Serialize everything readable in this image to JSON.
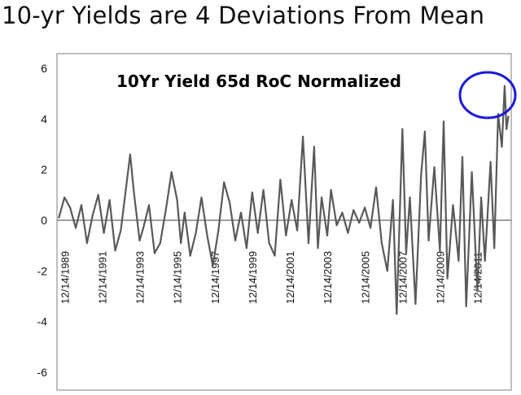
{
  "slide": {
    "title": "10-yr Yields are 4 Deviations From Mean"
  },
  "colors": {
    "series": "#595959",
    "zero_line": "#7f7f7f",
    "frame": "#7f7f7f",
    "annotation": "#1a1ad6",
    "background": "#ffffff"
  },
  "chart_data": {
    "type": "line",
    "title": "10Yr Yield 65d RoC Normalized",
    "xlabel": "",
    "ylabel": "",
    "ylim": [
      -6,
      6
    ],
    "yticks": [
      -6,
      -4,
      -2,
      0,
      2,
      4,
      6
    ],
    "grid": false,
    "x_tick_labels": [
      "12/14/1989",
      "12/14/1991",
      "12/14/1993",
      "12/14/1995",
      "12/14/1997",
      "12/14/1999",
      "12/14/2001",
      "12/14/2003",
      "12/14/2005",
      "12/14/2007",
      "12/14/2009",
      "12/14/2011"
    ],
    "x_tick_years": [
      1989.95,
      1991.95,
      1993.95,
      1995.95,
      1997.95,
      1999.95,
      2001.95,
      2003.95,
      2005.95,
      2007.95,
      2009.95,
      2011.95
    ],
    "xlim": [
      1989.5,
      2013.7
    ],
    "annotation": "circle around the latest peak",
    "series": [
      {
        "x": [
          1989.6,
          1989.9,
          1990.2,
          1990.5,
          1990.8,
          1991.1,
          1991.4,
          1991.7,
          1992.0,
          1992.3,
          1992.6,
          1992.9,
          1993.2,
          1993.4,
          1993.6,
          1993.9,
          1994.1,
          1994.4,
          1994.7,
          1995.0,
          1995.3,
          1995.6,
          1995.9,
          1996.1,
          1996.3,
          1996.6,
          1996.9,
          1997.2,
          1997.5,
          1997.8,
          1998.1,
          1998.4,
          1998.7,
          1999.0,
          1999.3,
          1999.6,
          1999.9,
          2000.2,
          2000.5,
          2000.8,
          2001.1,
          2001.4,
          2001.7,
          2002.0,
          2002.3,
          2002.6,
          2002.9,
          2003.2,
          2003.4,
          2003.6,
          2003.9,
          2004.1,
          2004.4,
          2004.7,
          2005.0,
          2005.3,
          2005.6,
          2005.9,
          2006.2,
          2006.5,
          2006.8,
          2007.1,
          2007.4,
          2007.6,
          2007.9,
          2008.1,
          2008.3,
          2008.6,
          2008.9,
          2009.1,
          2009.3,
          2009.6,
          2009.9,
          2010.1,
          2010.3,
          2010.6,
          2010.9,
          2011.1,
          2011.3,
          2011.6,
          2011.9,
          2012.1,
          2012.3,
          2012.6,
          2012.8,
          2013.0,
          2013.2,
          2013.35,
          2013.45,
          2013.55
        ],
        "y": [
          0.1,
          0.9,
          0.5,
          -0.3,
          0.6,
          -0.9,
          0.2,
          1.0,
          -0.5,
          0.8,
          -1.2,
          -0.4,
          1.4,
          2.6,
          1.1,
          -0.8,
          -0.3,
          0.6,
          -1.3,
          -0.9,
          0.4,
          1.9,
          0.8,
          -0.9,
          0.3,
          -1.4,
          -0.5,
          0.9,
          -0.6,
          -1.8,
          -0.4,
          1.5,
          0.7,
          -0.8,
          0.3,
          -1.1,
          1.1,
          -0.5,
          1.2,
          -0.9,
          -1.4,
          1.6,
          -0.6,
          0.8,
          -0.4,
          3.3,
          -0.9,
          2.9,
          -1.1,
          0.9,
          -0.6,
          1.2,
          -0.2,
          0.3,
          -0.5,
          0.4,
          -0.1,
          0.5,
          -0.3,
          1.3,
          -0.9,
          -2.0,
          0.8,
          -3.7,
          3.6,
          -1.3,
          0.9,
          -3.3,
          1.8,
          3.5,
          -0.8,
          2.1,
          -1.2,
          3.9,
          -2.3,
          0.6,
          -1.6,
          2.5,
          -3.4,
          1.9,
          -2.8,
          0.9,
          -1.6,
          2.3,
          -1.1,
          4.2,
          2.9,
          5.3,
          3.6,
          4.1
        ]
      }
    ]
  }
}
